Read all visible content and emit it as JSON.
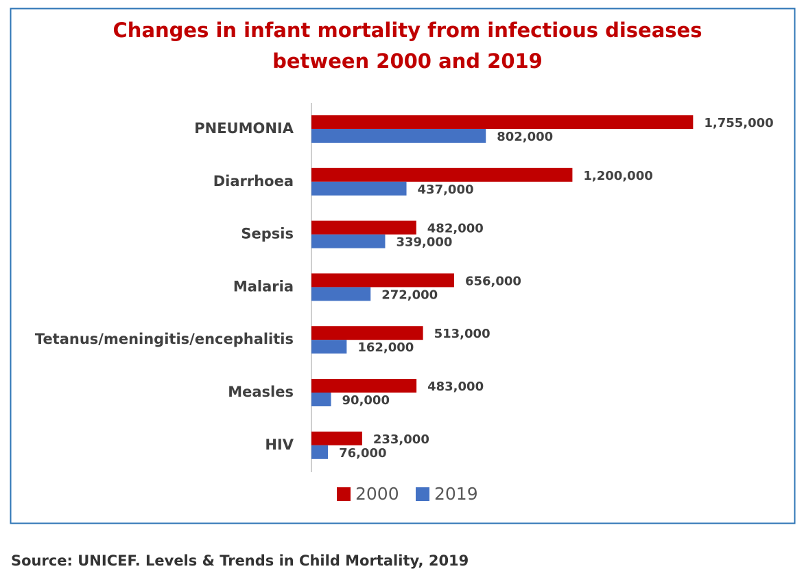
{
  "chart_data": {
    "type": "hbar",
    "title": [
      "Changes in infant mortality from infectious diseases",
      "between 2000 and 2019"
    ],
    "categories": [
      "PNEUMONIA",
      "Diarrhoea",
      "Sepsis",
      "Malaria",
      "Tetanus/meningitis/encephalitis",
      "Measles",
      "HIV"
    ],
    "series": [
      {
        "name": "2000",
        "color": "#c00000",
        "values": [
          1755000,
          1200000,
          482000,
          656000,
          513000,
          483000,
          233000
        ],
        "value_labels": [
          "1,755,000",
          "1,200,000",
          "482,000",
          "656,000",
          "513,000",
          "483,000",
          "233,000"
        ]
      },
      {
        "name": "2019",
        "color": "#4472c4",
        "values": [
          802000,
          437000,
          339000,
          272000,
          162000,
          90000,
          76000
        ],
        "value_labels": [
          "802,000",
          "437,000",
          "339,000",
          "272,000",
          "162,000",
          "90,000",
          "76,000"
        ]
      }
    ],
    "xlim": [
      0,
      2000000
    ],
    "source": "Source: UNICEF. Levels & Trends in Child Mortality, 2019"
  }
}
